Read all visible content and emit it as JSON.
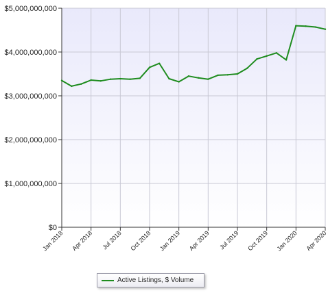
{
  "chart_data": {
    "type": "line",
    "title": "",
    "xlabel": "",
    "ylabel": "",
    "ylim": [
      0,
      5000000000
    ],
    "y_ticks": [
      0,
      1000000000,
      2000000000,
      3000000000,
      4000000000,
      5000000000
    ],
    "y_tick_labels": [
      "$0",
      "$1,000,000,000",
      "$2,000,000,000",
      "$3,000,000,000",
      "$4,000,000,000",
      "$5,000,000,000"
    ],
    "x_tick_labels": [
      "Jan 2018",
      "Apr 2018",
      "Jul 2018",
      "Oct 2018",
      "Jan 2019",
      "Apr 2019",
      "Jul 2019",
      "Oct 2019",
      "Jan 2020",
      "Apr 2020"
    ],
    "x": [
      "2018-01",
      "2018-02",
      "2018-03",
      "2018-04",
      "2018-05",
      "2018-06",
      "2018-07",
      "2018-08",
      "2018-09",
      "2018-10",
      "2018-11",
      "2018-12",
      "2019-01",
      "2019-02",
      "2019-03",
      "2019-04",
      "2019-05",
      "2019-06",
      "2019-07",
      "2019-08",
      "2019-09",
      "2019-10",
      "2019-11",
      "2019-12",
      "2020-01",
      "2020-02",
      "2020-03",
      "2020-04"
    ],
    "grid": true,
    "legend_position": "bottom-center",
    "series": [
      {
        "name": "Active Listings, $ Volume",
        "color": "#1e8c1e",
        "values": [
          3350000000,
          3220000000,
          3270000000,
          3360000000,
          3340000000,
          3380000000,
          3390000000,
          3380000000,
          3400000000,
          3650000000,
          3740000000,
          3390000000,
          3320000000,
          3450000000,
          3410000000,
          3380000000,
          3470000000,
          3480000000,
          3500000000,
          3630000000,
          3840000000,
          3910000000,
          3980000000,
          3820000000,
          4600000000,
          4590000000,
          4570000000,
          4520000000
        ]
      }
    ]
  }
}
